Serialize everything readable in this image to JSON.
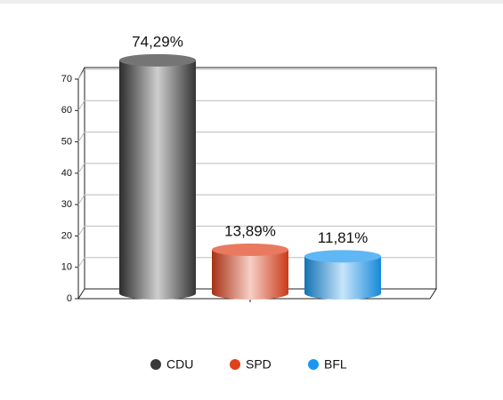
{
  "chart_data": {
    "type": "bar",
    "categories": [
      "CDU",
      "SPD",
      "BFL"
    ],
    "values": [
      74.29,
      13.89,
      11.81
    ],
    "value_labels": [
      "74,29%",
      "13,89%",
      "11,81%"
    ],
    "colors": [
      "#3a3a3a",
      "#e0401a",
      "#1a98f0"
    ],
    "ylim": [
      0,
      70
    ],
    "yticks": [
      0,
      10,
      20,
      30,
      40,
      50,
      60,
      70
    ],
    "grid": true,
    "legend": "bottom"
  }
}
